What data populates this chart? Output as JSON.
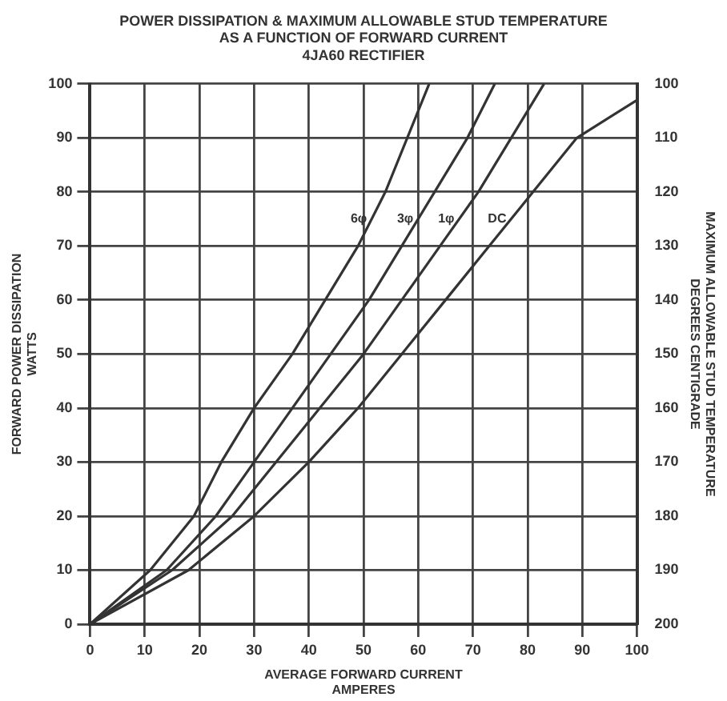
{
  "chart_data": {
    "type": "line",
    "title": "POWER DISSIPATION & MAXIMUM ALLOWABLE STUD TEMPERATURE\nAS A FUNCTION OF FORWARD CURRENT",
    "subtitle": "4JA60 RECTIFIER",
    "xlabel": "AVERAGE FORWARD CURRENT\nAMPERES",
    "ylabel": "FORWARD POWER DISSIPATION\nWATTS",
    "y2label": "MAXIMUM ALLOWABLE STUD TEMPERATURE\nDEGREES CENTIGRADE",
    "xlim": [
      0,
      100
    ],
    "xticks": [
      0,
      10,
      20,
      30,
      40,
      50,
      60,
      70,
      80,
      90,
      100
    ],
    "ylim": [
      0,
      100
    ],
    "yticks": [
      0,
      10,
      20,
      30,
      40,
      50,
      60,
      70,
      80,
      90,
      100
    ],
    "y2lim": [
      200,
      100
    ],
    "y2ticks": [
      100,
      110,
      120,
      130,
      140,
      150,
      160,
      170,
      180,
      190,
      200
    ],
    "grid": true,
    "legend": false,
    "marker": "none",
    "line_style": "solid",
    "series": [
      {
        "name": "6φ",
        "color": "#333333",
        "x": [
          0,
          11,
          19,
          24,
          30,
          37,
          43,
          49,
          54,
          58,
          62
        ],
        "values": [
          0,
          10,
          20,
          30,
          40,
          50,
          60,
          70,
          80,
          90,
          100
        ]
      },
      {
        "name": "3φ",
        "color": "#333333",
        "x": [
          0,
          14,
          23,
          30,
          37,
          44,
          51,
          57,
          63,
          69,
          74
        ],
        "values": [
          0,
          10,
          20,
          30,
          40,
          50,
          60,
          70,
          80,
          90,
          100
        ]
      },
      {
        "name": "1φ",
        "color": "#333333",
        "x": [
          0,
          15,
          26,
          34,
          42,
          50,
          57,
          64,
          71,
          77,
          83
        ],
        "values": [
          0,
          10,
          20,
          30,
          40,
          50,
          60,
          70,
          80,
          90,
          100
        ]
      },
      {
        "name": "DC",
        "color": "#333333",
        "x": [
          0,
          18,
          30,
          40,
          49,
          57,
          65,
          73,
          81,
          89,
          100
        ],
        "values": [
          0,
          10,
          20,
          30,
          40,
          50,
          60,
          70,
          80,
          90,
          97
        ]
      }
    ]
  }
}
